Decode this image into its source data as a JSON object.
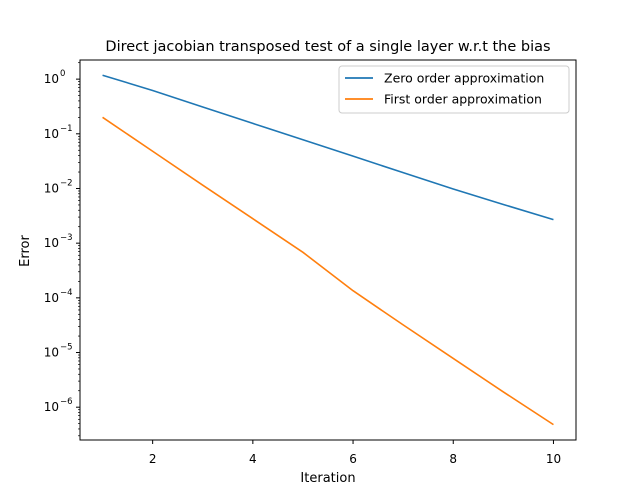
{
  "chart_data": {
    "type": "line",
    "title": "Direct jacobian transposed test of a single layer w.r.t the bias",
    "xlabel": "Iteration",
    "ylabel": "Error",
    "yscale": "log",
    "grid": false,
    "legend_position": "top-right",
    "xlim": [
      0.55,
      10.45
    ],
    "ylim_log10": [
      -6.6,
      0.35
    ],
    "x_ticks": [
      2,
      4,
      6,
      8,
      10
    ],
    "x_tick_labels": [
      "2",
      "4",
      "6",
      "8",
      "10"
    ],
    "y_ticks_log10": [
      0,
      -1,
      -2,
      -3,
      -4,
      -5,
      -6
    ],
    "y_tick_labels": [
      "10",
      "10",
      "10",
      "10",
      "10",
      "10",
      "10"
    ],
    "y_tick_exponents": [
      "0",
      "−1",
      "−2",
      "−3",
      "−4",
      "−5",
      "−6"
    ],
    "x": [
      1,
      2,
      3,
      4,
      5,
      6,
      7,
      8,
      9,
      10
    ],
    "series": [
      {
        "name": "Zero order approximation",
        "color": "#1f77b4",
        "values": [
          1.18,
          0.62,
          0.31,
          0.155,
          0.078,
          0.039,
          0.0195,
          0.0098,
          0.0051,
          0.0027
        ]
      },
      {
        "name": "First order approximation",
        "color": "#ff7f0e",
        "values": [
          0.2,
          0.048,
          0.0115,
          0.0028,
          0.00068,
          0.000135,
          3.2e-05,
          7.8e-06,
          1.9e-06,
          4.8e-07
        ]
      }
    ]
  }
}
